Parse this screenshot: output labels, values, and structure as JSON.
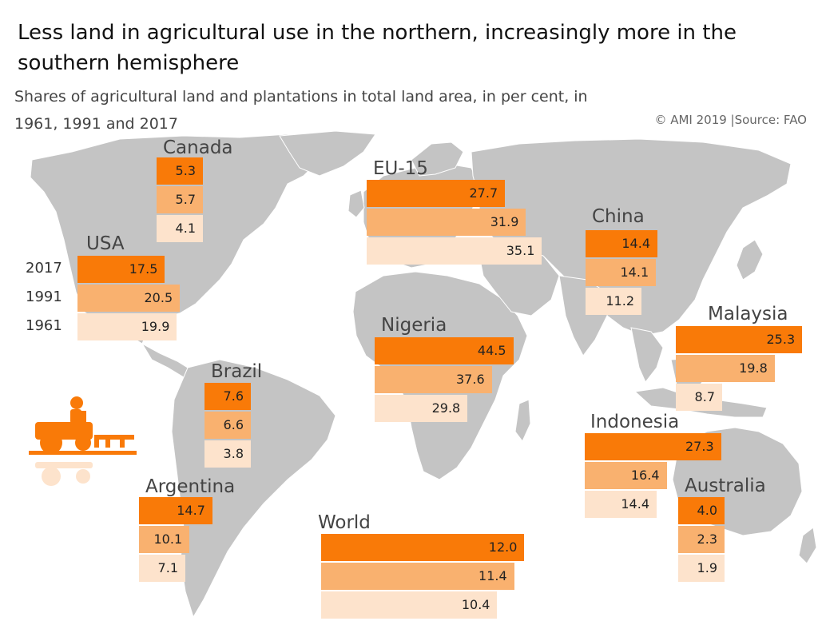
{
  "title": "Less land in agricultural use in the northern, increasingly more in the southern hemisphere",
  "subtitle": "Shares of agricultural land and plantations in total land area, in per cent, in 1961, 1991 and 2017",
  "source": "© AMI 2019 |Source: FAO",
  "colors": {
    "2017": "#f97a08",
    "1991": "#f9b16f",
    "1961": "#fde3cc",
    "map": "#c4c4c4"
  },
  "year_labels": [
    "2017",
    "1991",
    "1961"
  ],
  "chart_data": {
    "type": "bar",
    "title": "Less land in agricultural use in the northern, increasingly more in the southern hemisphere",
    "subtitle": "Shares of agricultural land and plantations in total land area, in per cent, in 1961, 1991 and 2017",
    "unit": "per cent",
    "series_years": [
      "2017",
      "1991",
      "1961"
    ],
    "regions": [
      {
        "name": "Canada",
        "values": [
          5.3,
          5.7,
          4.1
        ]
      },
      {
        "name": "USA",
        "values": [
          17.5,
          20.5,
          19.9
        ]
      },
      {
        "name": "EU-15",
        "values": [
          27.7,
          31.9,
          35.1
        ]
      },
      {
        "name": "China",
        "values": [
          14.4,
          14.1,
          11.2
        ]
      },
      {
        "name": "Malaysia",
        "values": [
          25.3,
          19.8,
          8.7
        ]
      },
      {
        "name": "Nigeria",
        "values": [
          44.5,
          37.6,
          29.8
        ]
      },
      {
        "name": "Brazil",
        "values": [
          7.6,
          6.6,
          3.8
        ]
      },
      {
        "name": "Indonesia",
        "values": [
          27.3,
          16.4,
          14.4
        ]
      },
      {
        "name": "Argentina",
        "values": [
          14.7,
          10.1,
          7.1
        ]
      },
      {
        "name": "Australia",
        "values": [
          4.0,
          2.3,
          1.9
        ]
      },
      {
        "name": "World",
        "values": [
          12.0,
          11.4,
          10.4
        ]
      }
    ]
  }
}
